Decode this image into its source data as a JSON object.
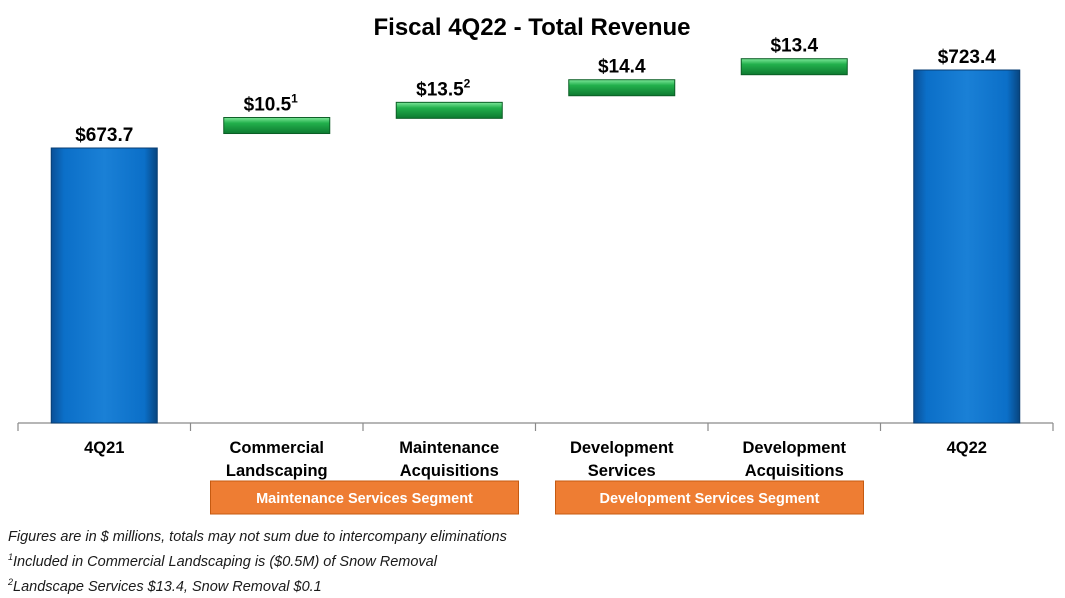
{
  "chart_data": {
    "type": "waterfall",
    "title": "Fiscal 4Q22 - Total Revenue",
    "unit": "$ millions",
    "categories": [
      {
        "label": [
          "4Q21"
        ]
      },
      {
        "label": [
          "Commercial",
          "Landscaping"
        ]
      },
      {
        "label": [
          "Maintenance",
          "Acquisitions"
        ]
      },
      {
        "label": [
          "Development",
          "Services"
        ]
      },
      {
        "label": [
          "Development",
          "Acquisitions"
        ]
      },
      {
        "label": [
          "4Q22"
        ]
      }
    ],
    "bars": [
      {
        "kind": "total",
        "value": 673.7,
        "label": "$673.7",
        "sup": ""
      },
      {
        "kind": "delta",
        "value": 10.5,
        "label": "$10.5",
        "sup": "1"
      },
      {
        "kind": "delta",
        "value": 13.5,
        "label": "$13.5",
        "sup": "2"
      },
      {
        "kind": "delta",
        "value": 14.4,
        "label": "$14.4",
        "sup": ""
      },
      {
        "kind": "delta",
        "value": 13.4,
        "label": "$13.4",
        "sup": ""
      },
      {
        "kind": "total",
        "value": 723.4,
        "label": "$723.4",
        "sup": ""
      }
    ],
    "segments": [
      {
        "label": "Maintenance Services Segment",
        "covers": [
          1,
          2
        ]
      },
      {
        "label": "Development Services Segment",
        "covers": [
          3,
          4
        ]
      }
    ],
    "colors": {
      "total": "#0b6fc8",
      "delta": "#20b04a",
      "segment_fill": "#ee7d33",
      "axis": "#8a8a8a"
    }
  },
  "footnotes": {
    "general": "Figures are in $ millions, totals may not sum due to intercompany eliminations",
    "note1_marker": "1",
    "note1_text": "Included in Commercial Landscaping is ($0.5M) of Snow Removal",
    "note2_marker": "2",
    "note2_text": "Landscape Services $13.4, Snow Removal $0.1"
  }
}
